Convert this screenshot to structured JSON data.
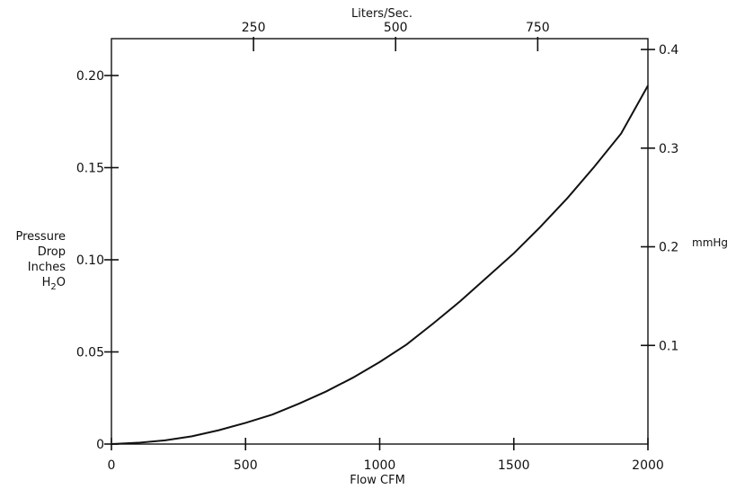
{
  "chart_data": {
    "type": "line",
    "title": "",
    "xlabel": "Flow CFM",
    "ylabel_lines": [
      "Pressure",
      "Drop",
      "Inches",
      "H",
      "2",
      "O"
    ],
    "x2label": "Liters/Sec.",
    "y2label": "mmHg",
    "xlim": [
      0,
      2000
    ],
    "ylim": [
      0,
      0.22
    ],
    "x2lim": [
      0,
      943.9
    ],
    "y2lim": [
      0,
      0.411
    ],
    "x_ticks": [
      0,
      500,
      1000,
      1500,
      2000
    ],
    "x_tick_labels": [
      "0",
      "500",
      "1000",
      "1500",
      "2000"
    ],
    "y_ticks": [
      0,
      0.05,
      0.1,
      0.15,
      0.2
    ],
    "y_tick_labels": [
      "0",
      "0.05",
      "0.10",
      "0.15",
      "0.20"
    ],
    "x2_ticks": [
      250,
      500,
      750
    ],
    "x2_tick_labels": [
      "250",
      "500",
      "750"
    ],
    "y2_ticks": [
      0.1,
      0.2,
      0.3,
      0.4
    ],
    "y2_tick_labels": [
      "0.1",
      "0.2",
      "0.3",
      "0.4"
    ],
    "grid": false,
    "series": [
      {
        "x": [
          0,
          100,
          200,
          300,
          400,
          500,
          600,
          700,
          800,
          900,
          1000,
          1100,
          1200,
          1300,
          1400,
          1500,
          1600,
          1700,
          1800,
          1900,
          2000
        ],
        "y": [
          0,
          0.0007,
          0.002,
          0.0042,
          0.0075,
          0.0115,
          0.016,
          0.022,
          0.0285,
          0.036,
          0.0445,
          0.054,
          0.0655,
          0.0775,
          0.0905,
          0.1035,
          0.118,
          0.1335,
          0.1505,
          0.1685,
          0.1945
        ]
      }
    ]
  }
}
